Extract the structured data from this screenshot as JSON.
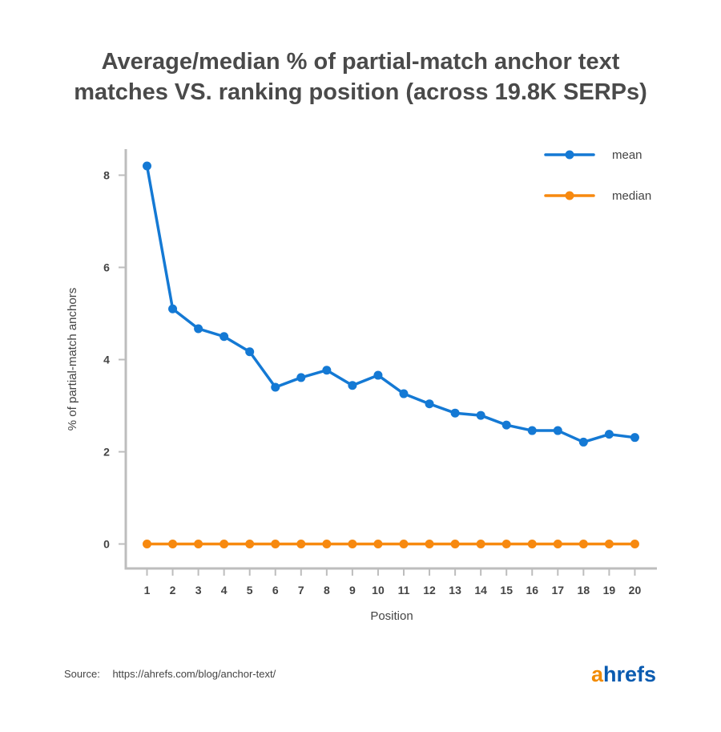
{
  "title_line1": "Average/median % of partial-match anchor text",
  "title_line2": "matches VS. ranking position (across 19.8K SERPs)",
  "source_label": "Source:",
  "source_url": "https://ahrefs.com/blog/anchor-text/",
  "logo_a": "a",
  "logo_rest": "hrefs",
  "colors": {
    "mean": "#1479d4",
    "median": "#f7890f",
    "axis": "#bdbdbd"
  },
  "chart_data": {
    "type": "line",
    "title": "Average/median % of partial-match anchor text matches VS. ranking position (across 19.8K SERPs)",
    "xlabel": "Position",
    "ylabel": "% of partial-match anchors",
    "x": [
      1,
      2,
      3,
      4,
      5,
      6,
      7,
      8,
      9,
      10,
      11,
      12,
      13,
      14,
      15,
      16,
      17,
      18,
      19,
      20
    ],
    "ylim": [
      -0.5,
      8.6
    ],
    "yticks": [
      0,
      2,
      4,
      6,
      8
    ],
    "legend_position": "top-right",
    "series": [
      {
        "name": "mean",
        "values": [
          8.2,
          5.1,
          4.67,
          4.5,
          4.17,
          3.4,
          3.61,
          3.77,
          3.44,
          3.66,
          3.26,
          3.04,
          2.84,
          2.79,
          2.58,
          2.46,
          2.46,
          2.21,
          2.38,
          2.31
        ]
      },
      {
        "name": "median",
        "values": [
          0,
          0,
          0,
          0,
          0,
          0,
          0,
          0,
          0,
          0,
          0,
          0,
          0,
          0,
          0,
          0,
          0,
          0,
          0,
          0
        ]
      }
    ]
  }
}
